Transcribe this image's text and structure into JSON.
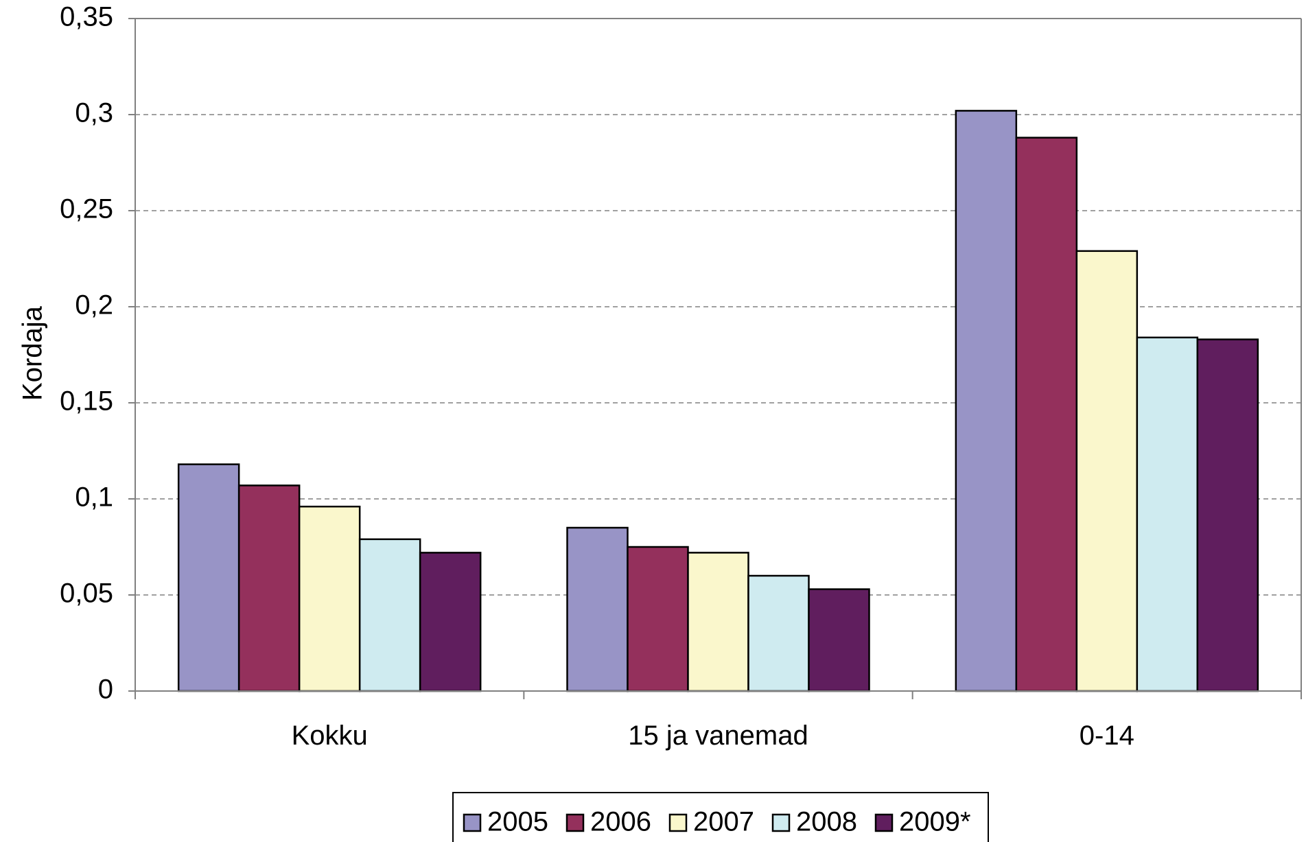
{
  "chart_data": {
    "type": "bar",
    "ylabel": "Kordaja",
    "xlabel": "",
    "ylim": [
      0,
      0.35
    ],
    "y_ticks": [
      "0",
      "0,05",
      "0,1",
      "0,15",
      "0,2",
      "0,25",
      "0,3",
      "0,35"
    ],
    "y_tick_values": [
      0,
      0.05,
      0.1,
      0.15,
      0.2,
      0.25,
      0.3,
      0.35
    ],
    "grid": true,
    "legend_position": "bottom-center",
    "categories": [
      "Kokku",
      "15 ja vanemad",
      "0-14"
    ],
    "series": [
      {
        "name": "2005",
        "color": "#9894C6",
        "values": [
          0.118,
          0.085,
          0.302
        ]
      },
      {
        "name": "2006",
        "color": "#94305C",
        "values": [
          0.107,
          0.075,
          0.288
        ]
      },
      {
        "name": "2007",
        "color": "#FAF7CC",
        "values": [
          0.096,
          0.072,
          0.229
        ]
      },
      {
        "name": "2008",
        "color": "#CFEBF0",
        "values": [
          0.079,
          0.06,
          0.184
        ]
      },
      {
        "name": "2009*",
        "color": "#601E5E",
        "values": [
          0.072,
          0.053,
          0.183
        ]
      }
    ]
  }
}
